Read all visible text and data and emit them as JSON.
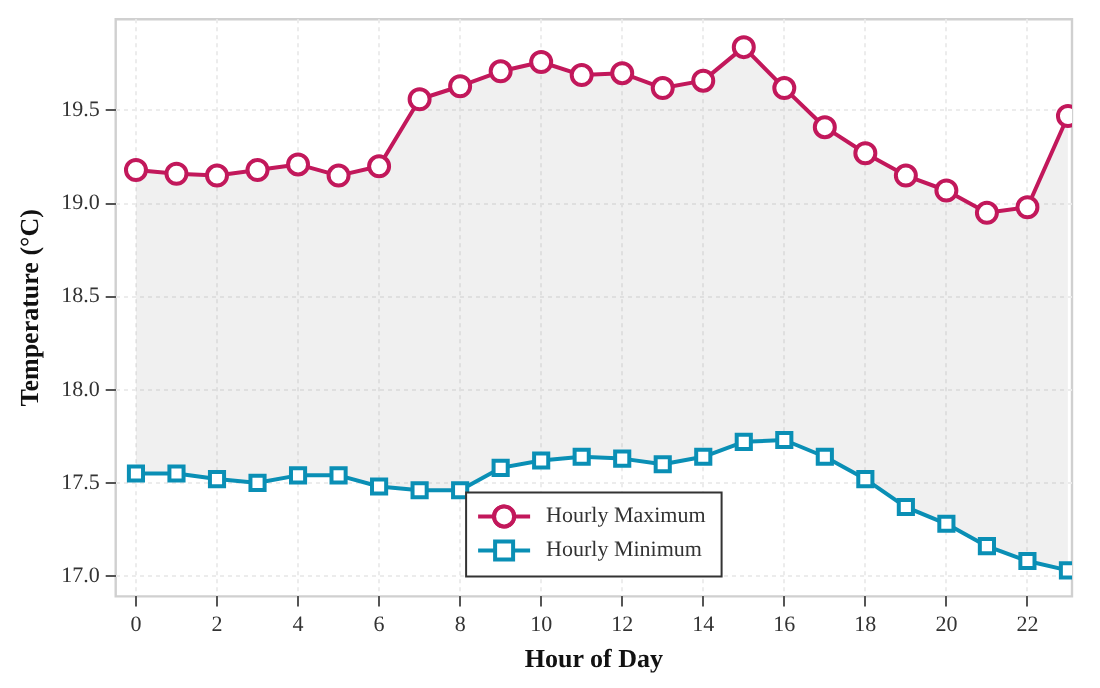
{
  "chart_data": {
    "type": "line",
    "xlabel": "Hour of Day",
    "ylabel": "Temperature (°C)",
    "x": [
      0,
      1,
      2,
      3,
      4,
      5,
      6,
      7,
      8,
      9,
      10,
      11,
      12,
      13,
      14,
      15,
      16,
      17,
      18,
      19,
      20,
      21,
      22,
      23
    ],
    "series": [
      {
        "name": "Hourly Maximum",
        "color": "#c2185b",
        "marker": "circle",
        "values": [
          19.18,
          19.16,
          19.15,
          19.18,
          19.21,
          19.15,
          19.2,
          19.56,
          19.63,
          19.71,
          19.76,
          19.69,
          19.7,
          19.62,
          19.66,
          19.84,
          19.62,
          19.41,
          19.27,
          19.15,
          19.07,
          18.95,
          18.98,
          19.47
        ],
        "lower": [
          17.55,
          17.55,
          17.52,
          17.5,
          17.54,
          17.54,
          17.48,
          17.46,
          17.46,
          17.58,
          17.62,
          17.64,
          17.63,
          17.6,
          17.64,
          17.72,
          17.73,
          17.64,
          17.52,
          17.37,
          17.28,
          17.16,
          17.08,
          17.03
        ],
        "upper": [
          19.18,
          19.16,
          19.15,
          19.18,
          19.21,
          19.15,
          19.2,
          19.56,
          19.63,
          19.71,
          19.76,
          19.69,
          19.7,
          19.62,
          19.66,
          19.84,
          19.62,
          19.41,
          19.27,
          19.15,
          19.07,
          18.95,
          18.98,
          19.47
        ]
      },
      {
        "name": "Hourly Minimum",
        "color": "#0a8fb5",
        "marker": "square",
        "values": [
          17.55,
          17.55,
          17.52,
          17.5,
          17.54,
          17.54,
          17.48,
          17.46,
          17.46,
          17.58,
          17.62,
          17.64,
          17.63,
          17.6,
          17.64,
          17.72,
          17.73,
          17.64,
          17.52,
          17.37,
          17.28,
          17.16,
          17.08,
          17.03
        ]
      }
    ],
    "xlim": [
      -0.5,
      23.1
    ],
    "xticks": [
      0,
      2,
      4,
      6,
      8,
      10,
      12,
      14,
      16,
      18,
      20,
      22
    ],
    "ylim": [
      16.89,
      19.99
    ],
    "yticks": [
      {
        "value": 17,
        "label": "17.0"
      },
      17.5,
      {
        "value": 18,
        "label": "18.0"
      },
      18.5,
      {
        "value": 19,
        "label": "19.0"
      },
      19.5
    ],
    "grid": true,
    "legend": "bottom"
  }
}
